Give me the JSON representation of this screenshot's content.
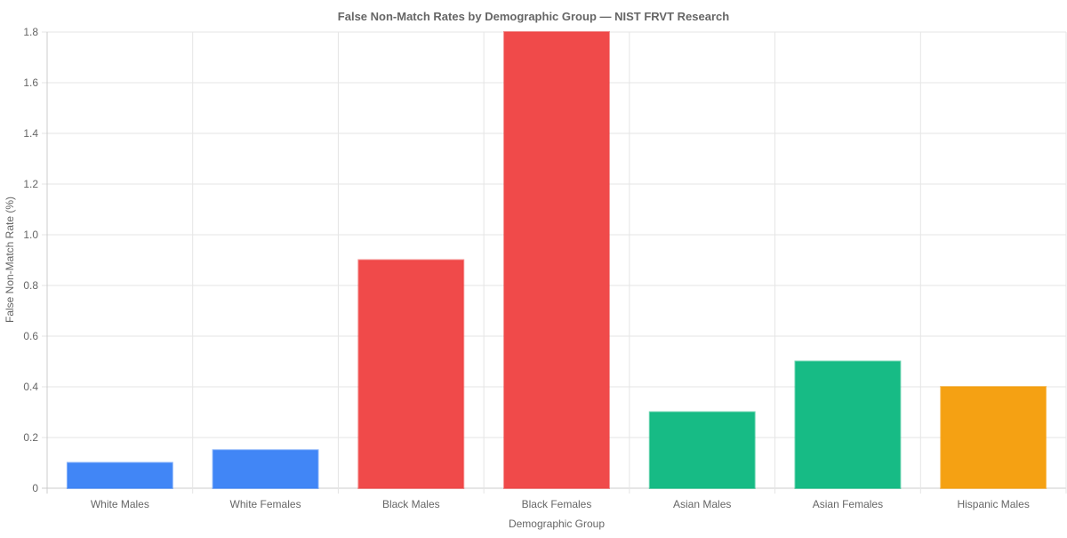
{
  "chart_data": {
    "type": "bar",
    "title": "False Non-Match Rates by Demographic Group — NIST FRVT Research",
    "xlabel": "Demographic Group",
    "ylabel": "False Non-Match Rate (%)",
    "ylim": [
      0,
      1.8
    ],
    "yticks": [
      0,
      0.2,
      0.4,
      0.6,
      0.8,
      1.0,
      1.2,
      1.4,
      1.6,
      1.8
    ],
    "ytick_labels": [
      "0",
      "0.2",
      "0.4",
      "0.6",
      "0.8",
      "1.0",
      "1.2",
      "1.4",
      "1.6",
      "1.8"
    ],
    "grid": true,
    "legend": "none",
    "categories": [
      "White Males",
      "White Females",
      "Black Males",
      "Black Females",
      "Asian Males",
      "Asian Females",
      "Hispanic Males"
    ],
    "values": [
      0.1,
      0.15,
      0.9,
      1.8,
      0.3,
      0.5,
      0.4
    ],
    "colors": [
      "#3b82f6",
      "#3b82f6",
      "#ef4444",
      "#ef4444",
      "#10b981",
      "#10b981",
      "#f59e0b"
    ]
  }
}
